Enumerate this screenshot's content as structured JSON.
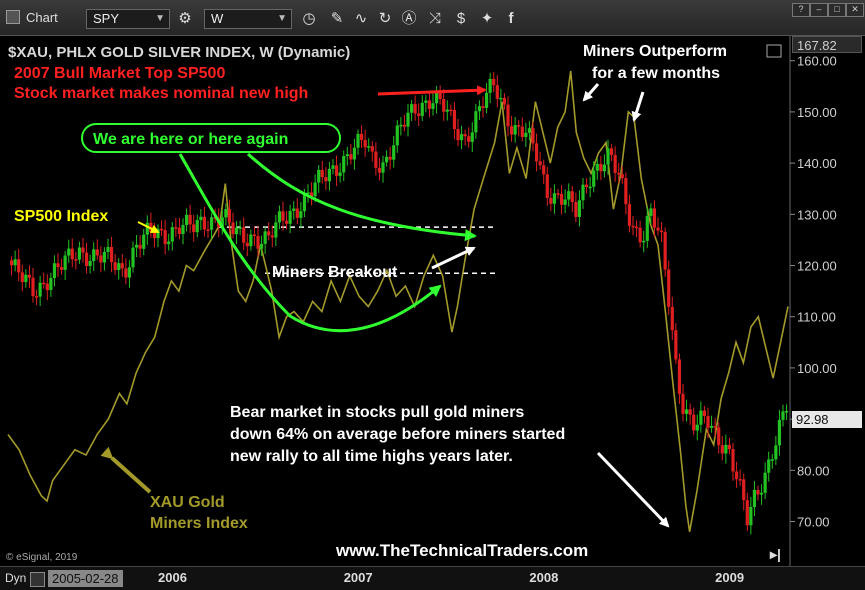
{
  "toolbar": {
    "app_title": "Chart",
    "symbol": "SPY",
    "interval": "W"
  },
  "chart_header": {
    "title": "$XAU, PHLX GOLD SILVER INDEX, W (Dynamic)"
  },
  "price_labels": {
    "top_price": "167.82",
    "current_price": "92.98"
  },
  "annotations": {
    "bull_top_line1": "2007 Bull Market Top SP500",
    "bull_top_line2": "Stock market makes nominal new high",
    "outperform_line1": "Miners Outperform",
    "outperform_line2": "for a few months",
    "we_are_here": "We are here or here again",
    "sp500_label": "SP500 Index",
    "breakout": "Miners Breakout",
    "bear_line1": "Bear market in stocks pull gold miners",
    "bear_line2": "down 64% on average before miners started",
    "bear_line3": "new rally to all time highs years later.",
    "xau_line1": "XAU Gold",
    "xau_line2": "Miners Index",
    "website": "www.TheTechnicalTraders.com",
    "copyright": "© eSignal, 2019"
  },
  "bottom_bar": {
    "mode": "Dyn",
    "date": "2005-02-28"
  },
  "colors": {
    "background": "#000000",
    "up_candle": "#22c322",
    "down_candle": "#e02020",
    "xau_line": "#a39a2a",
    "red_text": "#ff2020",
    "green_annotation": "#30ff30",
    "yellow_text": "#ffff00",
    "white_text": "#ffffff"
  },
  "chart_data": {
    "type": "line",
    "title": "$XAU, PHLX GOLD SILVER INDEX, W (Dynamic)",
    "y_axis": {
      "ticks": [
        70,
        80,
        90,
        100,
        110,
        120,
        130,
        140,
        150,
        160
      ],
      "tick_labels": [
        "70.00",
        "80.00",
        "90.00",
        "100.00",
        "110.00",
        "120.00",
        "130.00",
        "140.00",
        "150.00",
        "160.00"
      ],
      "range": [
        66,
        170
      ]
    },
    "x_axis": {
      "ticks": [
        "2006",
        "2007",
        "2008",
        "2009"
      ],
      "tick_positions": [
        2006.0,
        2007.0,
        2008.0,
        2009.0
      ],
      "range": [
        2005.16,
        2009.36
      ]
    },
    "grid": false,
    "breakout_levels": [
      127.5,
      118.5
    ],
    "series": [
      {
        "name": "XAU Gold Miners Index",
        "style": "line",
        "points": [
          [
            2005.16,
            87
          ],
          [
            2005.22,
            84
          ],
          [
            2005.28,
            79
          ],
          [
            2005.34,
            75
          ],
          [
            2005.37,
            74
          ],
          [
            2005.4,
            78
          ],
          [
            2005.46,
            81
          ],
          [
            2005.52,
            84
          ],
          [
            2005.58,
            83
          ],
          [
            2005.64,
            87
          ],
          [
            2005.7,
            90
          ],
          [
            2005.76,
            95
          ],
          [
            2005.8,
            93
          ],
          [
            2005.85,
            99
          ],
          [
            2005.9,
            103
          ],
          [
            2005.95,
            106
          ],
          [
            2006.0,
            113
          ],
          [
            2006.04,
            117
          ],
          [
            2006.08,
            115
          ],
          [
            2006.12,
            120
          ],
          [
            2006.16,
            119
          ],
          [
            2006.22,
            123
          ],
          [
            2006.27,
            126
          ],
          [
            2006.3,
            128
          ],
          [
            2006.33,
            136
          ],
          [
            2006.36,
            125
          ],
          [
            2006.4,
            115
          ],
          [
            2006.44,
            113
          ],
          [
            2006.48,
            117
          ],
          [
            2006.52,
            124
          ],
          [
            2006.58,
            115
          ],
          [
            2006.62,
            106
          ],
          [
            2006.66,
            110
          ],
          [
            2006.7,
            111
          ],
          [
            2006.75,
            109
          ],
          [
            2006.8,
            113
          ],
          [
            2006.85,
            111
          ],
          [
            2006.9,
            117
          ],
          [
            2006.95,
            113
          ],
          [
            2007.0,
            118
          ],
          [
            2007.05,
            114
          ],
          [
            2007.1,
            112
          ],
          [
            2007.15,
            115
          ],
          [
            2007.2,
            119
          ],
          [
            2007.25,
            114
          ],
          [
            2007.3,
            116
          ],
          [
            2007.35,
            112
          ],
          [
            2007.4,
            118
          ],
          [
            2007.45,
            122
          ],
          [
            2007.5,
            118
          ],
          [
            2007.55,
            107
          ],
          [
            2007.58,
            112
          ],
          [
            2007.62,
            121
          ],
          [
            2007.67,
            131
          ],
          [
            2007.72,
            137
          ],
          [
            2007.78,
            144
          ],
          [
            2007.82,
            152
          ],
          [
            2007.86,
            138
          ],
          [
            2007.9,
            143
          ],
          [
            2007.95,
            137
          ],
          [
            2008.0,
            152
          ],
          [
            2008.04,
            146
          ],
          [
            2008.08,
            140
          ],
          [
            2008.12,
            147
          ],
          [
            2008.16,
            150
          ],
          [
            2008.19,
            158
          ],
          [
            2008.22,
            146
          ],
          [
            2008.26,
            141
          ],
          [
            2008.3,
            138
          ],
          [
            2008.34,
            142
          ],
          [
            2008.38,
            144
          ],
          [
            2008.42,
            131
          ],
          [
            2008.46,
            138
          ],
          [
            2008.5,
            150
          ],
          [
            2008.53,
            149
          ],
          [
            2008.57,
            137
          ],
          [
            2008.62,
            128
          ],
          [
            2008.66,
            124
          ],
          [
            2008.7,
            111
          ],
          [
            2008.74,
            97
          ],
          [
            2008.78,
            84
          ],
          [
            2008.81,
            73
          ],
          [
            2008.83,
            68
          ],
          [
            2008.87,
            76
          ],
          [
            2008.92,
            88
          ],
          [
            2008.96,
            85
          ],
          [
            2009.0,
            94
          ],
          [
            2009.04,
            99
          ],
          [
            2009.08,
            105
          ],
          [
            2009.12,
            101
          ],
          [
            2009.16,
            108
          ],
          [
            2009.2,
            110
          ],
          [
            2009.24,
            104
          ],
          [
            2009.28,
            98
          ],
          [
            2009.32,
            105
          ],
          [
            2009.36,
            112
          ]
        ]
      },
      {
        "name": "SP500 (SPY)",
        "style": "candlestick",
        "points": [
          [
            2005.16,
            121
          ],
          [
            2005.24,
            117
          ],
          [
            2005.3,
            115
          ],
          [
            2005.38,
            118
          ],
          [
            2005.46,
            120
          ],
          [
            2005.54,
            123
          ],
          [
            2005.62,
            122
          ],
          [
            2005.7,
            121
          ],
          [
            2005.78,
            119
          ],
          [
            2005.85,
            124
          ],
          [
            2005.92,
            126
          ],
          [
            2006.0,
            126
          ],
          [
            2006.08,
            128
          ],
          [
            2006.16,
            127
          ],
          [
            2006.24,
            129
          ],
          [
            2006.32,
            130
          ],
          [
            2006.36,
            127
          ],
          [
            2006.42,
            125
          ],
          [
            2006.48,
            126
          ],
          [
            2006.56,
            125
          ],
          [
            2006.62,
            128
          ],
          [
            2006.7,
            131
          ],
          [
            2006.78,
            134
          ],
          [
            2006.86,
            137
          ],
          [
            2006.94,
            140
          ],
          [
            2007.0,
            142
          ],
          [
            2007.08,
            144
          ],
          [
            2007.12,
            141
          ],
          [
            2007.18,
            140
          ],
          [
            2007.24,
            144
          ],
          [
            2007.3,
            148
          ],
          [
            2007.36,
            151
          ],
          [
            2007.44,
            153
          ],
          [
            2007.5,
            151
          ],
          [
            2007.56,
            147
          ],
          [
            2007.62,
            145
          ],
          [
            2007.68,
            149
          ],
          [
            2007.74,
            153
          ],
          [
            2007.78,
            155
          ],
          [
            2007.82,
            152
          ],
          [
            2007.88,
            147
          ],
          [
            2007.94,
            146
          ],
          [
            2008.0,
            142
          ],
          [
            2008.06,
            135
          ],
          [
            2008.1,
            134
          ],
          [
            2008.16,
            133
          ],
          [
            2008.22,
            130
          ],
          [
            2008.28,
            137
          ],
          [
            2008.34,
            140
          ],
          [
            2008.4,
            141
          ],
          [
            2008.46,
            136
          ],
          [
            2008.52,
            128
          ],
          [
            2008.58,
            126
          ],
          [
            2008.62,
            130
          ],
          [
            2008.68,
            124
          ],
          [
            2008.72,
            113
          ],
          [
            2008.76,
            100
          ],
          [
            2008.8,
            92
          ],
          [
            2008.86,
            88
          ],
          [
            2008.92,
            90
          ],
          [
            2008.98,
            87
          ],
          [
            2009.04,
            84
          ],
          [
            2009.1,
            76
          ],
          [
            2009.14,
            70
          ],
          [
            2009.18,
            75
          ],
          [
            2009.24,
            80
          ],
          [
            2009.3,
            86
          ],
          [
            2009.36,
            93
          ]
        ]
      }
    ]
  }
}
